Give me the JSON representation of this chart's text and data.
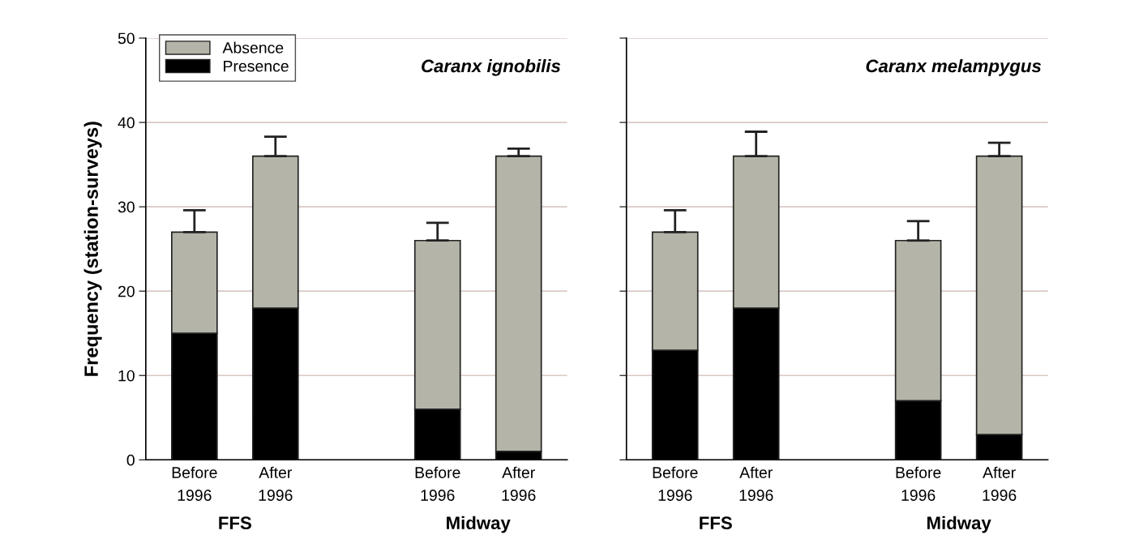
{
  "chart_data": [
    {
      "type": "bar",
      "title": "Caranx ignobilis",
      "ylabel": "Frequency (station-surveys)",
      "stacked": true,
      "categories": [
        "Before\n1996",
        "After\n1996",
        null,
        "Before\n1996",
        "After\n1996"
      ],
      "series": [
        {
          "name": "Presence",
          "color": "#000000",
          "values": [
            15,
            18,
            null,
            6,
            1
          ]
        },
        {
          "name": "Absence",
          "color": "#b4b4a8",
          "values": [
            12,
            18,
            null,
            20,
            35
          ],
          "errors": [
            [
              27,
              29.6
            ],
            [
              36,
              38.3
            ],
            null,
            [
              26,
              28.1
            ],
            [
              36,
              36.9
            ]
          ]
        }
      ],
      "annotations": [
        "FFS",
        "Midway"
      ],
      "ylim": [
        0,
        50
      ],
      "yticks": [
        0,
        10,
        20,
        30,
        40,
        50
      ],
      "grid": "y",
      "legend": "top left"
    },
    {
      "type": "bar",
      "title": "Caranx melampygus",
      "stacked": true,
      "categories": [
        "Before\n1996",
        "After\n1996",
        null,
        "Before\n1996",
        "After\n1996"
      ],
      "series": [
        {
          "color": "#000000",
          "values": [
            13,
            18,
            null,
            7,
            3
          ]
        },
        {
          "color": "#b4b4a8",
          "values": [
            14,
            18,
            null,
            19,
            33
          ],
          "errors": [
            [
              27,
              29.6
            ],
            [
              36,
              38.9
            ],
            null,
            [
              26,
              28.3
            ],
            [
              36,
              37.6
            ]
          ]
        }
      ],
      "annotations": [
        "FFS",
        "Midway"
      ],
      "ylim": [
        0,
        50
      ],
      "yticks": [
        0,
        10,
        20,
        30,
        40,
        50
      ],
      "grid": "y",
      "tick_labels": "x"
    }
  ]
}
